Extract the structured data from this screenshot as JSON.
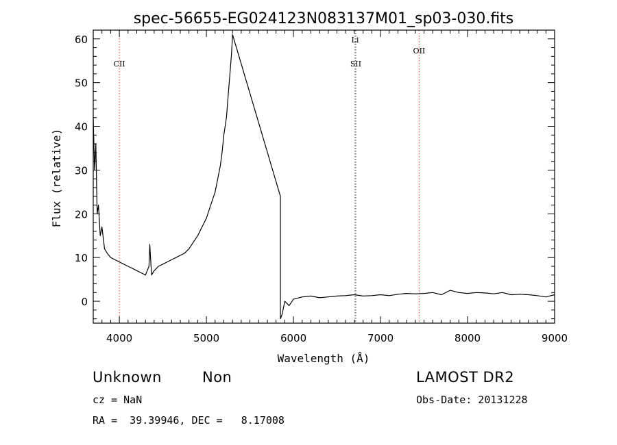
{
  "chart_data": {
    "type": "line",
    "title": "spec-56655-EG024123N083137M01_sp03-030.fits",
    "xlabel": "Wavelength (Å)",
    "ylabel": "Flux (relative)",
    "xlim": [
      3700,
      9000
    ],
    "ylim": [
      -5,
      62
    ],
    "xticks": [
      4000,
      5000,
      6000,
      7000,
      8000,
      9000
    ],
    "yticks": [
      0,
      10,
      20,
      30,
      40,
      50,
      60
    ],
    "grid": false,
    "series": [
      {
        "x": [
          3700,
          3715,
          3730,
          3745,
          3760,
          3780,
          3800,
          3830,
          3860,
          3900,
          3950,
          4000,
          4050,
          4100,
          4150,
          4200,
          4250,
          4300,
          4340,
          4350,
          4370,
          4400,
          4450,
          4500,
          4550,
          4600,
          4650,
          4700,
          4750,
          4800,
          4850,
          4900,
          4950,
          5000,
          5050,
          5100,
          5130,
          5160,
          5180,
          5200,
          5230,
          5250,
          5270,
          5290,
          5300,
          5850,
          5850,
          5870,
          5900,
          5950,
          6000,
          6100,
          6200,
          6300,
          6400,
          6500,
          6600,
          6700,
          6800,
          6900,
          7000,
          7100,
          7200,
          7300,
          7400,
          7500,
          7600,
          7700,
          7800,
          7900,
          8000,
          8100,
          8200,
          8300,
          8400,
          8500,
          8600,
          8700,
          8800,
          8900,
          9000
        ],
        "y": [
          42,
          30,
          36,
          20,
          22,
          15,
          17,
          12,
          11,
          10,
          9.5,
          9,
          8.5,
          8,
          7.5,
          7,
          6.5,
          6,
          8,
          13,
          6,
          7,
          8,
          8.5,
          9,
          9.5,
          10,
          10.5,
          11,
          12,
          13.5,
          15,
          17,
          19,
          22,
          25,
          28,
          31,
          34,
          38,
          42,
          47,
          52,
          57,
          61,
          24,
          -4,
          -3,
          0,
          -1,
          0.5,
          1,
          1.2,
          0.8,
          1,
          1.2,
          1.3,
          1.5,
          1.2,
          1.3,
          1.5,
          1.3,
          1.6,
          1.8,
          1.7,
          1.8,
          2,
          1.5,
          2.5,
          2,
          1.8,
          2,
          1.9,
          1.7,
          2,
          1.5,
          1.6,
          1.5,
          1.3,
          1,
          1.5
        ]
      }
    ],
    "lines": [
      {
        "label": "CII",
        "x": 4000,
        "color": "#e06060"
      },
      {
        "label": "SII",
        "x": 6716,
        "color": "#707070"
      },
      {
        "label": "Li",
        "x": 6708,
        "color": "#707070"
      },
      {
        "label": "OII",
        "x": 7444,
        "color": "#e06060"
      }
    ]
  },
  "info": {
    "class": "Unknown",
    "subclass": "Non",
    "survey": "LAMOST DR2",
    "cz": "cz = NaN",
    "obs_date": "Obs-Date: 20131228",
    "coords": "RA =  39.39946, DEC =   8.17008"
  }
}
